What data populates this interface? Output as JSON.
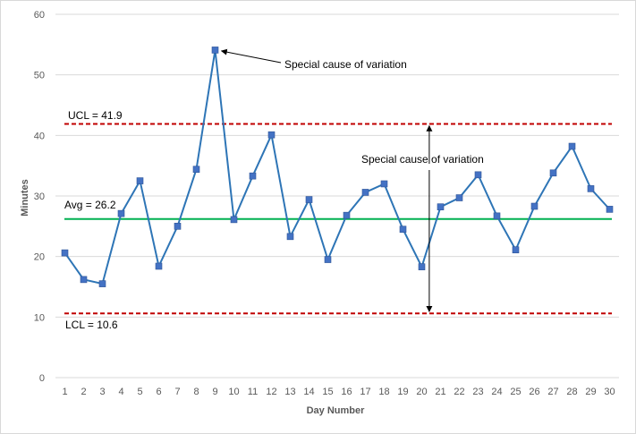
{
  "chart_data": {
    "type": "line",
    "xlabel": "Day Number",
    "ylabel": "Minutes",
    "ylim": [
      0,
      60
    ],
    "yticks": [
      0,
      10,
      20,
      30,
      40,
      50,
      60
    ],
    "x": [
      1,
      2,
      3,
      4,
      5,
      6,
      7,
      8,
      9,
      10,
      11,
      12,
      13,
      14,
      15,
      16,
      17,
      18,
      19,
      20,
      21,
      22,
      23,
      24,
      25,
      26,
      27,
      28,
      29,
      30
    ],
    "series": [
      {
        "values": [
          20.6,
          16.2,
          15.5,
          27.1,
          32.5,
          18.4,
          25.0,
          34.4,
          54.1,
          26.1,
          33.3,
          40.1,
          23.3,
          29.4,
          19.5,
          26.8,
          30.6,
          32.0,
          24.5,
          18.3,
          28.2,
          29.7,
          33.5,
          26.7,
          21.1,
          28.3,
          33.8,
          38.2,
          31.2,
          27.8
        ],
        "color": "#2e75b6",
        "marker_color": "#4472c4"
      }
    ],
    "reference_lines": {
      "ucl": {
        "value": 41.9,
        "label": "UCL = 41.9",
        "color": "#c00000",
        "style": "dashed"
      },
      "avg": {
        "value": 26.2,
        "label": "Avg = 26.2",
        "color": "#00b050",
        "style": "solid"
      },
      "lcl": {
        "value": 10.6,
        "label": "LCL = 10.6",
        "color": "#c00000",
        "style": "dashed"
      }
    },
    "annotations": [
      {
        "text": "Special cause of variation",
        "points_to_day": 9,
        "points_to_value": 54.1
      },
      {
        "text": "Special cause of variation",
        "arrow_day": 20.4,
        "arrow_up_to": 41.9,
        "arrow_down_to": 10.6
      }
    ],
    "grid": true,
    "legend": "none"
  }
}
